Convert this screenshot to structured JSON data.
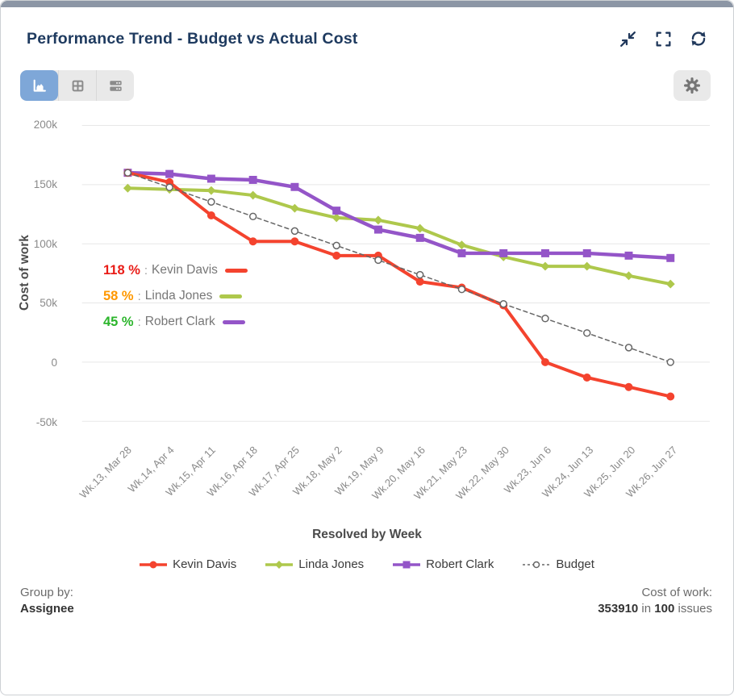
{
  "header": {
    "title": "Performance Trend - Budget vs Actual Cost",
    "icons": [
      "collapse-icon",
      "fullscreen-icon",
      "refresh-icon"
    ]
  },
  "toolbar": {
    "view_buttons": [
      {
        "id": "chart",
        "icon": "area-chart-icon",
        "active": true
      },
      {
        "id": "table",
        "icon": "table-icon",
        "active": false
      },
      {
        "id": "list",
        "icon": "rows-icon",
        "active": false
      }
    ],
    "settings_icon": "gear-icon",
    "active_color": "#7ea7d8"
  },
  "chart_data": {
    "type": "line",
    "title": "Performance Trend - Budget vs Actual Cost",
    "xlabel": "Resolved by Week",
    "ylabel": "Cost of work",
    "grid": "horizontal",
    "legend_position": "bottom",
    "ylim": [
      -50000,
      200000
    ],
    "y_ticks": [
      {
        "label": "200k",
        "value": 200000
      },
      {
        "label": "150k",
        "value": 150000
      },
      {
        "label": "100k",
        "value": 100000
      },
      {
        "label": "50k",
        "value": 50000
      },
      {
        "label": "0",
        "value": 0
      },
      {
        "label": "-50k",
        "value": -50000
      }
    ],
    "x_categories": [
      "Wk.13, Mar 28",
      "Wk.14, Apr 4",
      "Wk.15, Apr 11",
      "Wk.16, Apr 18",
      "Wk.17, Apr 25",
      "Wk.18, May 2",
      "Wk.19, May 9",
      "Wk.20, May 16",
      "Wk.21, May 23",
      "Wk.22, May 30",
      "Wk.23, Jun 6",
      "Wk.24, Jun 13",
      "Wk.25, Jun 20",
      "Wk.26, Jun 27"
    ],
    "series": [
      {
        "name": "Kevin Davis",
        "color": "#f4432e",
        "marker": "circle",
        "line_width": 4,
        "dashed": false,
        "values": [
          160000,
          152000,
          124000,
          102000,
          102000,
          90000,
          90000,
          68000,
          63000,
          48000,
          0,
          -13000,
          -21000,
          -29000
        ]
      },
      {
        "name": "Linda Jones",
        "color": "#aec84c",
        "marker": "diamond",
        "line_width": 4,
        "dashed": false,
        "values": [
          147000,
          146000,
          145000,
          141000,
          130000,
          122000,
          120000,
          113000,
          99000,
          89000,
          81000,
          81000,
          73000,
          66000
        ]
      },
      {
        "name": "Robert Clark",
        "color": "#9455c8",
        "marker": "square",
        "line_width": 4.5,
        "dashed": false,
        "values": [
          160000,
          159000,
          155000,
          154000,
          148000,
          128000,
          112000,
          105000,
          92000,
          92000,
          92000,
          92000,
          90000,
          88000
        ]
      },
      {
        "name": "Budget",
        "color": "#666666",
        "marker": "open-circle",
        "line_width": 1.5,
        "dashed": true,
        "values": [
          160000,
          147700,
          135400,
          123100,
          110800,
          98500,
          86200,
          73800,
          61500,
          49200,
          36900,
          24600,
          12300,
          0
        ]
      }
    ],
    "annotations": [
      {
        "percent": "118 %",
        "percent_color": "#e91c17",
        "separator": ":",
        "label": "Kevin Davis",
        "swatch_color": "#f4432e"
      },
      {
        "percent": "58 %",
        "percent_color": "#ff9800",
        "separator": ":",
        "label": "Linda Jones",
        "swatch_color": "#aec84c"
      },
      {
        "percent": "45 %",
        "percent_color": "#2bb52b",
        "separator": ":",
        "label": "Robert Clark",
        "swatch_color": "#9455c8"
      }
    ]
  },
  "footer": {
    "group_by_label": "Group by:",
    "group_by_value": "Assignee",
    "cost_label": "Cost of work:",
    "total_value": "353910",
    "join_word": " in ",
    "issue_count": "100",
    "issues_word": " issues"
  }
}
